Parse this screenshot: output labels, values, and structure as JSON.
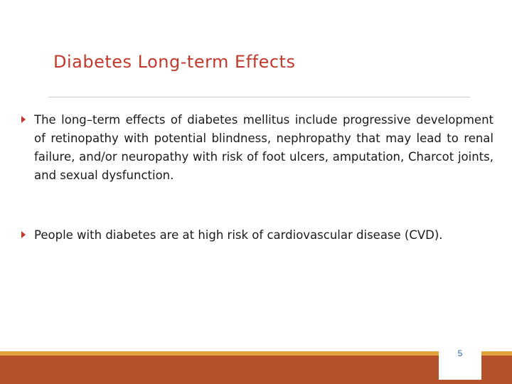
{
  "slide": {
    "title": "Diabetes Long-term Effects",
    "bullets": [
      {
        "text": "The long–term effects of diabetes mellitus include progressive development of retinopathy with potential blindness, nephropathy that may lead to renal failure, and/or neuropathy with risk of foot ulcers, amputation, Charcot joints, and sexual dysfunction."
      },
      {
        "text": "People with diabetes are at high risk of cardiovascular disease (CVD)."
      }
    ],
    "page_number": "5"
  },
  "colors": {
    "title": "#c0392b",
    "bullet_icon": "#c0392b",
    "footer": "#b5522b",
    "footer_accent": "#e0a33a",
    "page_number": "#2e5fa8"
  },
  "icons": {
    "bullet": "triangle-bullet-icon"
  }
}
